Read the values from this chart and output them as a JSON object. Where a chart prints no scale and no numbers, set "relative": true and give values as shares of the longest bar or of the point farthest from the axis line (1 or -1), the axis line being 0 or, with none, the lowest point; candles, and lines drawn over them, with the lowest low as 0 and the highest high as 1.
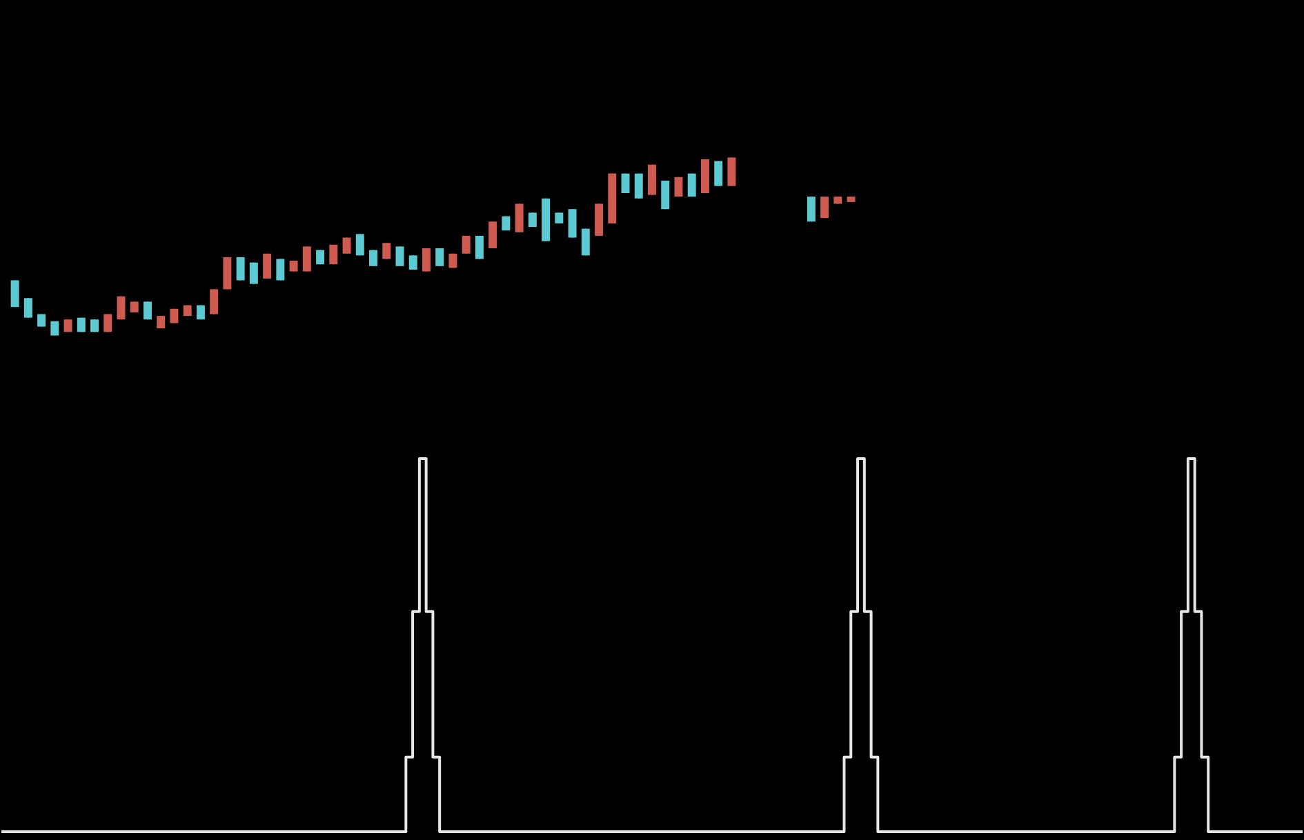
{
  "chart_data": [
    {
      "type": "candlestick",
      "relative": true,
      "categories": [
        null,
        null,
        null,
        null,
        null,
        null,
        null,
        null,
        null,
        null,
        null,
        null,
        null,
        null,
        null,
        null,
        null,
        null,
        null,
        null,
        null,
        null,
        null,
        null,
        null,
        null,
        null,
        null,
        null,
        null,
        null,
        null,
        null,
        null,
        null,
        null,
        null,
        null,
        null,
        null,
        null,
        null,
        null,
        null,
        null,
        null,
        null,
        null,
        null,
        null,
        null,
        null,
        null,
        null,
        null,
        null,
        null,
        null,
        null,
        null,
        null,
        null,
        null,
        null,
        null,
        null,
        null,
        null,
        null,
        null,
        null,
        null,
        null,
        null,
        null,
        null,
        null,
        null,
        null,
        null,
        null,
        null,
        null,
        null,
        null,
        null,
        null,
        null,
        null,
        null,
        null,
        null,
        null,
        null,
        null,
        null,
        null
      ],
      "ohlc": [
        [
          0.31,
          0.31,
          0.16,
          0.16
        ],
        [
          0.21,
          0.21,
          0.1,
          0.1
        ],
        [
          0.12,
          0.12,
          0.05,
          0.05
        ],
        [
          0.08,
          0.08,
          0.0,
          0.0
        ],
        [
          0.02,
          0.09,
          0.02,
          0.09
        ],
        [
          0.1,
          0.1,
          0.02,
          0.02
        ],
        [
          0.09,
          0.09,
          0.02,
          0.02
        ],
        [
          0.02,
          0.12,
          0.02,
          0.12
        ],
        [
          0.09,
          0.22,
          0.09,
          0.22
        ],
        [
          0.13,
          0.19,
          0.13,
          0.19
        ],
        [
          0.19,
          0.19,
          0.09,
          0.09
        ],
        [
          0.04,
          0.11,
          0.04,
          0.11
        ],
        [
          0.07,
          0.15,
          0.07,
          0.15
        ],
        [
          0.11,
          0.17,
          0.11,
          0.17
        ],
        [
          0.17,
          0.17,
          0.09,
          0.09
        ],
        [
          0.12,
          0.26,
          0.12,
          0.26
        ],
        [
          0.26,
          0.44,
          0.26,
          0.44
        ],
        [
          0.44,
          0.44,
          0.31,
          0.31
        ],
        [
          0.41,
          0.41,
          0.29,
          0.29
        ],
        [
          0.32,
          0.46,
          0.32,
          0.46
        ],
        [
          0.43,
          0.43,
          0.31,
          0.31
        ],
        [
          0.36,
          0.42,
          0.36,
          0.42
        ],
        [
          0.36,
          0.5,
          0.36,
          0.5
        ],
        [
          0.48,
          0.48,
          0.4,
          0.4
        ],
        [
          0.4,
          0.51,
          0.4,
          0.51
        ],
        [
          0.46,
          0.55,
          0.46,
          0.55
        ],
        [
          0.57,
          0.57,
          0.45,
          0.45
        ],
        [
          0.48,
          0.48,
          0.39,
          0.39
        ],
        [
          0.43,
          0.52,
          0.43,
          0.52
        ],
        [
          0.5,
          0.5,
          0.39,
          0.39
        ],
        [
          0.45,
          0.45,
          0.37,
          0.37
        ],
        [
          0.36,
          0.49,
          0.36,
          0.49
        ],
        [
          0.49,
          0.49,
          0.39,
          0.39
        ],
        [
          0.38,
          0.46,
          0.38,
          0.46
        ],
        [
          0.46,
          0.56,
          0.46,
          0.56
        ],
        [
          0.56,
          0.56,
          0.43,
          0.43
        ],
        [
          0.49,
          0.64,
          0.49,
          0.64
        ],
        [
          0.67,
          0.67,
          0.59,
          0.59
        ],
        [
          0.58,
          0.74,
          0.58,
          0.74
        ],
        [
          0.69,
          0.69,
          0.61,
          0.61
        ],
        [
          0.77,
          0.77,
          0.53,
          0.53
        ],
        [
          0.69,
          0.69,
          0.63,
          0.63
        ],
        [
          0.71,
          0.71,
          0.55,
          0.55
        ],
        [
          0.6,
          0.6,
          0.45,
          0.45
        ],
        [
          0.56,
          0.74,
          0.56,
          0.74
        ],
        [
          0.63,
          0.91,
          0.63,
          0.91
        ],
        [
          0.91,
          0.91,
          0.8,
          0.8
        ],
        [
          0.91,
          0.91,
          0.77,
          0.77
        ],
        [
          0.79,
          0.96,
          0.79,
          0.96
        ],
        [
          0.87,
          0.87,
          0.71,
          0.71
        ],
        [
          0.78,
          0.89,
          0.78,
          0.89
        ],
        [
          0.91,
          0.91,
          0.78,
          0.78
        ],
        [
          0.8,
          0.99,
          0.8,
          0.99
        ],
        [
          0.98,
          0.98,
          0.84,
          0.84
        ],
        [
          0.84,
          1.0,
          0.84,
          1.0
        ],
        null,
        null,
        null,
        null,
        null,
        [
          0.78,
          0.78,
          0.64,
          0.64
        ],
        [
          0.66,
          0.78,
          0.66,
          0.78
        ],
        [
          0.74,
          0.78,
          0.74,
          0.78
        ],
        [
          0.75,
          0.78,
          0.75,
          0.78
        ],
        null,
        null,
        null,
        null,
        null,
        null,
        null,
        null,
        null,
        null,
        null,
        null,
        null,
        null,
        null,
        null,
        null,
        null,
        null,
        null,
        null,
        null,
        null,
        null,
        null,
        null,
        null,
        null,
        null,
        null,
        null,
        null,
        null
      ],
      "colors": [
        "#5ccad2",
        "#5ccad2",
        "#5ccad2",
        "#5ccad2",
        "#cf5a50",
        "#5ccad2",
        "#5ccad2",
        "#cf5a50",
        "#cf5a50",
        "#cf5a50",
        "#5ccad2",
        "#cf5a50",
        "#cf5a50",
        "#cf5a50",
        "#5ccad2",
        "#cf5a50",
        "#cf5a50",
        "#5ccad2",
        "#5ccad2",
        "#cf5a50",
        "#5ccad2",
        "#cf5a50",
        "#cf5a50",
        "#5ccad2",
        "#cf5a50",
        "#cf5a50",
        "#5ccad2",
        "#5ccad2",
        "#cf5a50",
        "#5ccad2",
        "#5ccad2",
        "#cf5a50",
        "#5ccad2",
        "#cf5a50",
        "#cf5a50",
        "#5ccad2",
        "#cf5a50",
        "#5ccad2",
        "#cf5a50",
        "#5ccad2",
        "#5ccad2",
        "#5ccad2",
        "#5ccad2",
        "#5ccad2",
        "#cf5a50",
        "#cf5a50",
        "#5ccad2",
        "#5ccad2",
        "#cf5a50",
        "#5ccad2",
        "#cf5a50",
        "#5ccad2",
        "#cf5a50",
        "#5ccad2",
        "#cf5a50",
        null,
        null,
        null,
        null,
        null,
        "#5ccad2",
        "#cf5a50",
        "#cf5a50",
        "#cf5a50",
        null,
        null,
        null,
        null,
        null,
        null,
        null,
        null,
        null,
        null,
        null,
        null,
        null,
        null,
        null,
        null,
        null,
        null,
        null,
        null,
        null,
        null,
        null,
        null,
        null,
        null,
        null,
        null,
        null,
        null,
        null,
        null,
        null
      ]
    },
    {
      "type": "step",
      "relative": true,
      "categories": [
        null,
        null,
        null,
        null,
        null,
        null,
        null,
        null,
        null,
        null,
        null,
        null,
        null,
        null,
        null,
        null,
        null,
        null,
        null,
        null,
        null,
        null,
        null,
        null,
        null,
        null,
        null,
        null,
        null,
        null,
        null,
        null,
        null,
        null,
        null,
        null,
        null,
        null,
        null,
        null,
        null,
        null,
        null,
        null,
        null,
        null,
        null,
        null,
        null,
        null,
        null,
        null,
        null,
        null,
        null,
        null,
        null,
        null,
        null,
        null,
        null,
        null,
        null,
        null,
        null,
        null,
        null,
        null,
        null,
        null,
        null,
        null,
        null,
        null,
        null,
        null,
        null,
        null,
        null,
        null,
        null,
        null,
        null,
        null,
        null,
        null,
        null,
        null,
        null,
        null,
        null,
        null,
        null,
        null,
        null,
        null,
        null,
        null,
        null,
        null,
        null,
        null,
        null,
        null,
        null,
        null,
        null,
        null,
        null,
        null,
        null,
        null,
        null,
        null,
        null,
        null,
        null,
        null,
        null,
        null,
        null,
        null,
        null,
        null,
        null,
        null,
        null,
        null,
        null,
        null,
        null,
        null,
        null,
        null,
        null,
        null,
        null,
        null,
        null,
        null,
        null,
        null,
        null,
        null,
        null,
        null,
        null,
        null,
        null,
        null,
        null,
        null,
        null,
        null,
        null,
        null,
        null,
        null,
        null,
        null,
        null,
        null,
        null,
        null,
        null,
        null,
        null,
        null,
        null,
        null,
        null,
        null,
        null,
        null,
        null,
        null,
        null,
        null,
        null,
        null,
        null,
        null,
        null,
        null,
        null,
        null,
        null,
        null,
        null,
        null,
        null,
        null,
        null,
        null
      ],
      "series": [
        {
          "color": "#e6e6e6",
          "values": [
            0,
            0,
            0,
            0,
            0,
            0,
            0,
            0,
            0,
            0,
            0,
            0,
            0,
            0,
            0,
            0,
            0,
            0,
            0,
            0,
            0,
            0,
            0,
            0,
            0,
            0,
            0,
            0,
            0,
            0,
            0,
            0,
            0,
            0,
            0,
            0,
            0,
            0,
            0,
            0,
            0,
            0,
            0,
            0,
            0,
            0,
            0,
            0,
            0,
            0,
            0,
            0,
            0,
            0,
            0,
            0,
            0,
            0,
            0,
            0,
            0.2,
            0.59,
            1,
            0.59,
            0.2,
            0,
            0,
            0,
            0,
            0,
            0,
            0,
            0,
            0,
            0,
            0,
            0,
            0,
            0,
            0,
            0,
            0,
            0,
            0,
            0,
            0,
            0,
            0,
            0,
            0,
            0,
            0,
            0,
            0,
            0,
            0,
            0,
            0,
            0,
            0,
            0,
            0,
            0,
            0,
            0,
            0,
            0,
            0,
            0,
            0,
            0,
            0,
            0,
            0,
            0,
            0,
            0,
            0,
            0,
            0,
            0,
            0,
            0,
            0,
            0,
            0.2,
            0.59,
            1,
            0.59,
            0.2,
            0,
            0,
            0,
            0,
            0,
            0,
            0,
            0,
            0,
            0,
            0,
            0,
            0,
            0,
            0,
            0,
            0,
            0,
            0,
            0,
            0,
            0,
            0,
            0,
            0,
            0,
            0,
            0,
            0,
            0,
            0,
            0,
            0,
            0,
            0,
            0,
            0,
            0,
            0,
            0,
            0,
            0,
            0,
            0,
            0.2,
            0.59,
            1,
            0.59,
            0.2,
            0,
            0,
            0,
            0,
            0,
            0,
            0,
            0,
            0,
            0,
            0,
            0,
            0,
            0,
            0
          ]
        }
      ]
    }
  ]
}
